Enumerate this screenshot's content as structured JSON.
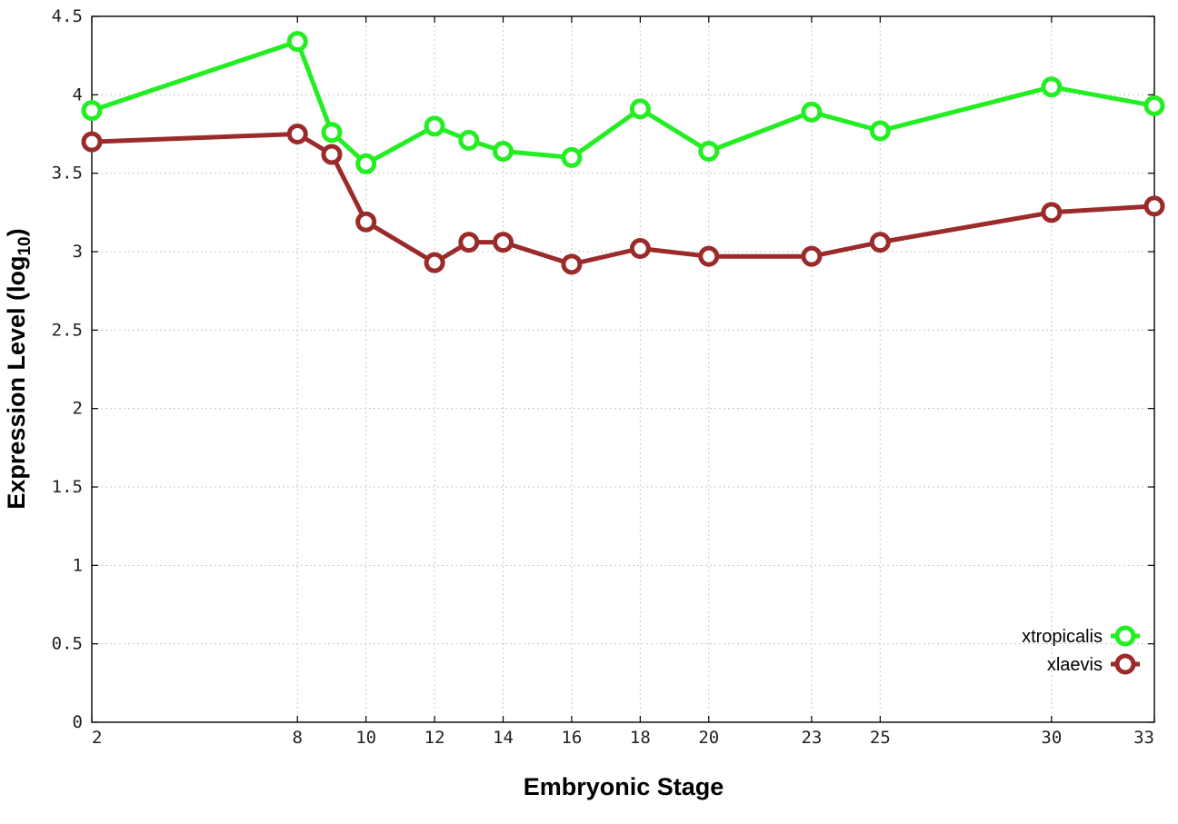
{
  "chart_data": {
    "type": "line",
    "xlabel": "Embryonic Stage",
    "ylabel_main": "Expression Level (log",
    "ylabel_sub": "10",
    "ylabel_close": ")",
    "x_ticks": [
      "2",
      "8",
      "10",
      "12",
      "14",
      "16",
      "18",
      "20",
      "23",
      "25",
      "30",
      "33"
    ],
    "y_ticks": [
      "0",
      "0.5",
      "1",
      "1.5",
      "2",
      "2.5",
      "3",
      "3.5",
      "4",
      "4.5"
    ],
    "ylim": [
      0,
      4.5
    ],
    "grid": true,
    "legend_position": "bottom-right",
    "x": [
      2,
      8,
      9,
      10,
      12,
      13,
      14,
      16,
      18,
      20,
      23,
      25,
      30,
      33
    ],
    "series": [
      {
        "name": "xtropicalis",
        "color": "#22ee22",
        "values": [
          3.9,
          4.34,
          3.76,
          3.56,
          3.8,
          3.71,
          3.64,
          3.6,
          3.91,
          3.64,
          3.89,
          3.77,
          4.05,
          3.93
        ]
      },
      {
        "name": "xlaevis",
        "color": "#9b2a2a",
        "values": [
          3.7,
          3.75,
          3.62,
          3.19,
          2.93,
          3.06,
          3.06,
          2.92,
          3.02,
          2.97,
          2.97,
          3.06,
          3.25,
          3.29
        ]
      }
    ]
  }
}
